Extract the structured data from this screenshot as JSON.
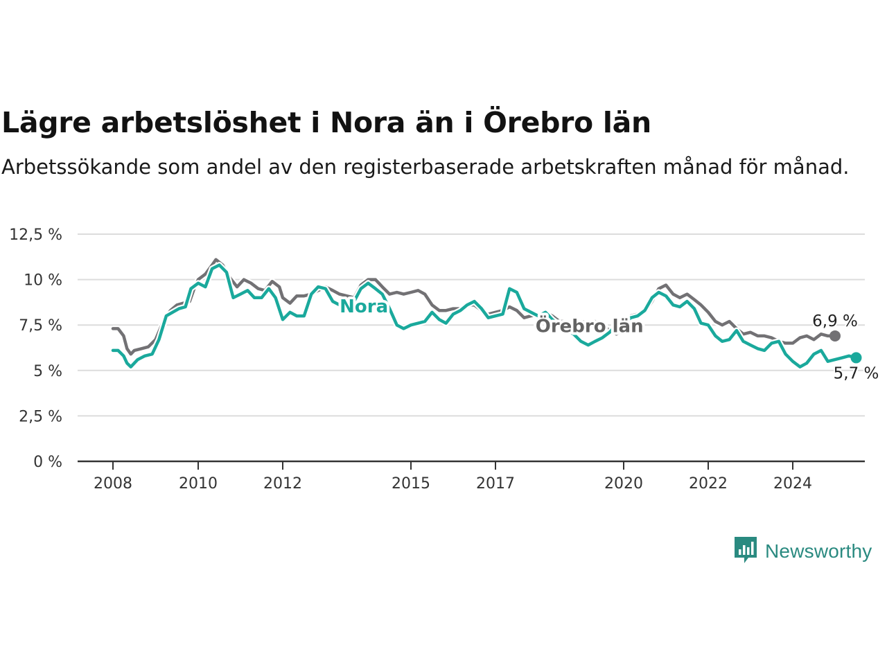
{
  "header": {
    "title": "Lägre arbetslöshet i Nora än i Örebro län",
    "subtitle": "Arbetssökande som andel av den registerbaserade arbetskraften månad för månad."
  },
  "brand": {
    "name": "Newsworthy",
    "icon": "newsworthy-logo-icon",
    "color": "#2a8a80"
  },
  "chart_data": {
    "type": "line",
    "ylim": [
      0,
      12.5
    ],
    "yticks": [
      0,
      2.5,
      5,
      7.5,
      10,
      12.5
    ],
    "ytick_labels": [
      "0 %",
      "2,5 %",
      "5 %",
      "7,5 %",
      "10 %",
      "12,5 %"
    ],
    "xticks": [
      2008,
      2010,
      2012,
      2015,
      2017,
      2020,
      2022,
      2024
    ],
    "xtick_labels": [
      "2008",
      "2010",
      "2012",
      "2015",
      "2017",
      "2020",
      "2022",
      "2024"
    ],
    "grid": true,
    "series": [
      {
        "name": "Örebro län",
        "color": "#727174",
        "end_label": "6,9 %",
        "points": [
          [
            2008.0,
            7.3
          ],
          [
            2008.12,
            7.3
          ],
          [
            2008.25,
            6.9
          ],
          [
            2008.33,
            6.2
          ],
          [
            2008.42,
            5.9
          ],
          [
            2008.5,
            6.1
          ],
          [
            2008.67,
            6.2
          ],
          [
            2008.83,
            6.3
          ],
          [
            2009.0,
            6.7
          ],
          [
            2009.2,
            7.8
          ],
          [
            2009.35,
            8.3
          ],
          [
            2009.5,
            8.6
          ],
          [
            2009.65,
            8.7
          ],
          [
            2009.8,
            8.8
          ],
          [
            2009.92,
            9.6
          ],
          [
            2010.0,
            10.0
          ],
          [
            2010.17,
            10.3
          ],
          [
            2010.33,
            10.8
          ],
          [
            2010.42,
            11.1
          ],
          [
            2010.58,
            10.8
          ],
          [
            2010.75,
            10.1
          ],
          [
            2010.92,
            9.6
          ],
          [
            2011.08,
            10.0
          ],
          [
            2011.25,
            9.8
          ],
          [
            2011.42,
            9.5
          ],
          [
            2011.58,
            9.4
          ],
          [
            2011.75,
            9.9
          ],
          [
            2011.92,
            9.6
          ],
          [
            2012.0,
            9.0
          ],
          [
            2012.17,
            8.7
          ],
          [
            2012.33,
            9.1
          ],
          [
            2012.5,
            9.1
          ],
          [
            2012.67,
            9.2
          ],
          [
            2012.83,
            9.4
          ],
          [
            2013.0,
            9.6
          ],
          [
            2013.17,
            9.4
          ],
          [
            2013.33,
            9.2
          ],
          [
            2013.5,
            9.1
          ],
          [
            2013.67,
            9.0
          ],
          [
            2013.83,
            9.7
          ],
          [
            2014.0,
            10.0
          ],
          [
            2014.17,
            10.0
          ],
          [
            2014.33,
            9.6
          ],
          [
            2014.5,
            9.2
          ],
          [
            2014.67,
            9.3
          ],
          [
            2014.83,
            9.2
          ],
          [
            2015.0,
            9.3
          ],
          [
            2015.17,
            9.4
          ],
          [
            2015.33,
            9.2
          ],
          [
            2015.5,
            8.6
          ],
          [
            2015.67,
            8.3
          ],
          [
            2015.83,
            8.3
          ],
          [
            2016.0,
            8.4
          ],
          [
            2016.17,
            8.4
          ],
          [
            2016.33,
            8.6
          ],
          [
            2016.5,
            8.6
          ],
          [
            2016.67,
            8.3
          ],
          [
            2016.83,
            8.1
          ],
          [
            2017.0,
            8.2
          ],
          [
            2017.17,
            8.3
          ],
          [
            2017.33,
            8.5
          ],
          [
            2017.5,
            8.3
          ],
          [
            2017.67,
            7.9
          ],
          [
            2017.83,
            8.0
          ],
          [
            2018.0,
            8.1
          ],
          [
            2018.17,
            8.2
          ],
          [
            2018.33,
            8.0
          ],
          [
            2018.5,
            7.7
          ],
          [
            2018.67,
            7.7
          ],
          [
            2018.83,
            7.6
          ],
          [
            2019.0,
            7.7
          ],
          [
            2019.17,
            7.6
          ],
          [
            2019.33,
            7.7
          ],
          [
            2019.5,
            7.5
          ],
          [
            2019.67,
            7.2
          ],
          [
            2019.83,
            7.0
          ],
          [
            2020.0,
            7.3
          ],
          [
            2020.17,
            8.0
          ],
          [
            2020.33,
            8.1
          ],
          [
            2020.5,
            8.2
          ],
          [
            2020.67,
            8.8
          ],
          [
            2020.83,
            9.5
          ],
          [
            2021.0,
            9.7
          ],
          [
            2021.17,
            9.2
          ],
          [
            2021.33,
            9.0
          ],
          [
            2021.5,
            9.2
          ],
          [
            2021.67,
            8.9
          ],
          [
            2021.83,
            8.6
          ],
          [
            2022.0,
            8.2
          ],
          [
            2022.17,
            7.7
          ],
          [
            2022.33,
            7.5
          ],
          [
            2022.5,
            7.7
          ],
          [
            2022.67,
            7.3
          ],
          [
            2022.83,
            7.0
          ],
          [
            2023.0,
            7.1
          ],
          [
            2023.17,
            6.9
          ],
          [
            2023.33,
            6.9
          ],
          [
            2023.5,
            6.8
          ],
          [
            2023.67,
            6.6
          ],
          [
            2023.83,
            6.5
          ],
          [
            2024.0,
            6.5
          ],
          [
            2024.17,
            6.8
          ],
          [
            2024.33,
            6.9
          ],
          [
            2024.5,
            6.7
          ],
          [
            2024.67,
            7.0
          ],
          [
            2024.83,
            6.9
          ],
          [
            2025.0,
            6.9
          ]
        ]
      },
      {
        "name": "Nora",
        "color": "#1aa99c",
        "end_label": "5,7 %",
        "points": [
          [
            2008.0,
            6.1
          ],
          [
            2008.12,
            6.1
          ],
          [
            2008.25,
            5.8
          ],
          [
            2008.33,
            5.4
          ],
          [
            2008.42,
            5.2
          ],
          [
            2008.58,
            5.6
          ],
          [
            2008.75,
            5.8
          ],
          [
            2008.92,
            5.9
          ],
          [
            2009.08,
            6.7
          ],
          [
            2009.25,
            8.0
          ],
          [
            2009.4,
            8.2
          ],
          [
            2009.55,
            8.4
          ],
          [
            2009.7,
            8.5
          ],
          [
            2009.83,
            9.5
          ],
          [
            2010.0,
            9.8
          ],
          [
            2010.17,
            9.6
          ],
          [
            2010.33,
            10.6
          ],
          [
            2010.5,
            10.8
          ],
          [
            2010.67,
            10.4
          ],
          [
            2010.83,
            9.0
          ],
          [
            2011.0,
            9.2
          ],
          [
            2011.17,
            9.4
          ],
          [
            2011.33,
            9.0
          ],
          [
            2011.5,
            9.0
          ],
          [
            2011.67,
            9.5
          ],
          [
            2011.83,
            9.0
          ],
          [
            2012.0,
            7.8
          ],
          [
            2012.17,
            8.2
          ],
          [
            2012.33,
            8.0
          ],
          [
            2012.5,
            8.0
          ],
          [
            2012.67,
            9.2
          ],
          [
            2012.83,
            9.6
          ],
          [
            2013.0,
            9.5
          ],
          [
            2013.17,
            8.8
          ],
          [
            2013.33,
            8.6
          ],
          [
            2013.5,
            8.7
          ],
          [
            2013.67,
            8.8
          ],
          [
            2013.83,
            9.5
          ],
          [
            2014.0,
            9.8
          ],
          [
            2014.17,
            9.5
          ],
          [
            2014.33,
            9.2
          ],
          [
            2014.5,
            8.4
          ],
          [
            2014.67,
            7.5
          ],
          [
            2014.83,
            7.3
          ],
          [
            2015.0,
            7.5
          ],
          [
            2015.17,
            7.6
          ],
          [
            2015.33,
            7.7
          ],
          [
            2015.5,
            8.2
          ],
          [
            2015.67,
            7.8
          ],
          [
            2015.83,
            7.6
          ],
          [
            2016.0,
            8.1
          ],
          [
            2016.17,
            8.3
          ],
          [
            2016.33,
            8.6
          ],
          [
            2016.5,
            8.8
          ],
          [
            2016.67,
            8.4
          ],
          [
            2016.83,
            7.9
          ],
          [
            2017.0,
            8.0
          ],
          [
            2017.17,
            8.1
          ],
          [
            2017.33,
            9.5
          ],
          [
            2017.5,
            9.3
          ],
          [
            2017.67,
            8.4
          ],
          [
            2017.83,
            8.2
          ],
          [
            2018.0,
            8.0
          ],
          [
            2018.17,
            8.2
          ],
          [
            2018.33,
            7.8
          ],
          [
            2018.5,
            7.5
          ],
          [
            2018.67,
            7.2
          ],
          [
            2018.83,
            7.0
          ],
          [
            2019.0,
            6.6
          ],
          [
            2019.17,
            6.4
          ],
          [
            2019.33,
            6.6
          ],
          [
            2019.5,
            6.8
          ],
          [
            2019.67,
            7.1
          ],
          [
            2019.83,
            7.5
          ],
          [
            2020.0,
            7.6
          ],
          [
            2020.17,
            7.9
          ],
          [
            2020.33,
            8.0
          ],
          [
            2020.5,
            8.3
          ],
          [
            2020.67,
            9.0
          ],
          [
            2020.83,
            9.3
          ],
          [
            2021.0,
            9.1
          ],
          [
            2021.17,
            8.6
          ],
          [
            2021.33,
            8.5
          ],
          [
            2021.5,
            8.8
          ],
          [
            2021.67,
            8.4
          ],
          [
            2021.83,
            7.6
          ],
          [
            2022.0,
            7.5
          ],
          [
            2022.17,
            6.9
          ],
          [
            2022.33,
            6.6
          ],
          [
            2022.5,
            6.7
          ],
          [
            2022.67,
            7.2
          ],
          [
            2022.83,
            6.6
          ],
          [
            2023.0,
            6.4
          ],
          [
            2023.17,
            6.2
          ],
          [
            2023.33,
            6.1
          ],
          [
            2023.5,
            6.5
          ],
          [
            2023.67,
            6.6
          ],
          [
            2023.83,
            5.9
          ],
          [
            2024.0,
            5.5
          ],
          [
            2024.17,
            5.2
          ],
          [
            2024.33,
            5.4
          ],
          [
            2024.5,
            5.9
          ],
          [
            2024.67,
            6.1
          ],
          [
            2024.83,
            5.5
          ],
          [
            2025.0,
            5.6
          ],
          [
            2025.17,
            5.7
          ],
          [
            2025.33,
            5.8
          ],
          [
            2025.5,
            5.7
          ]
        ]
      }
    ],
    "series_labels": [
      {
        "series": "Nora",
        "text": "Nora",
        "at": [
          2013.9,
          8.2
        ],
        "color": "#1aa99c"
      },
      {
        "series": "Örebro län",
        "text": "Örebro län",
        "at": [
          2019.2,
          7.1
        ],
        "color": "#636363"
      }
    ]
  }
}
